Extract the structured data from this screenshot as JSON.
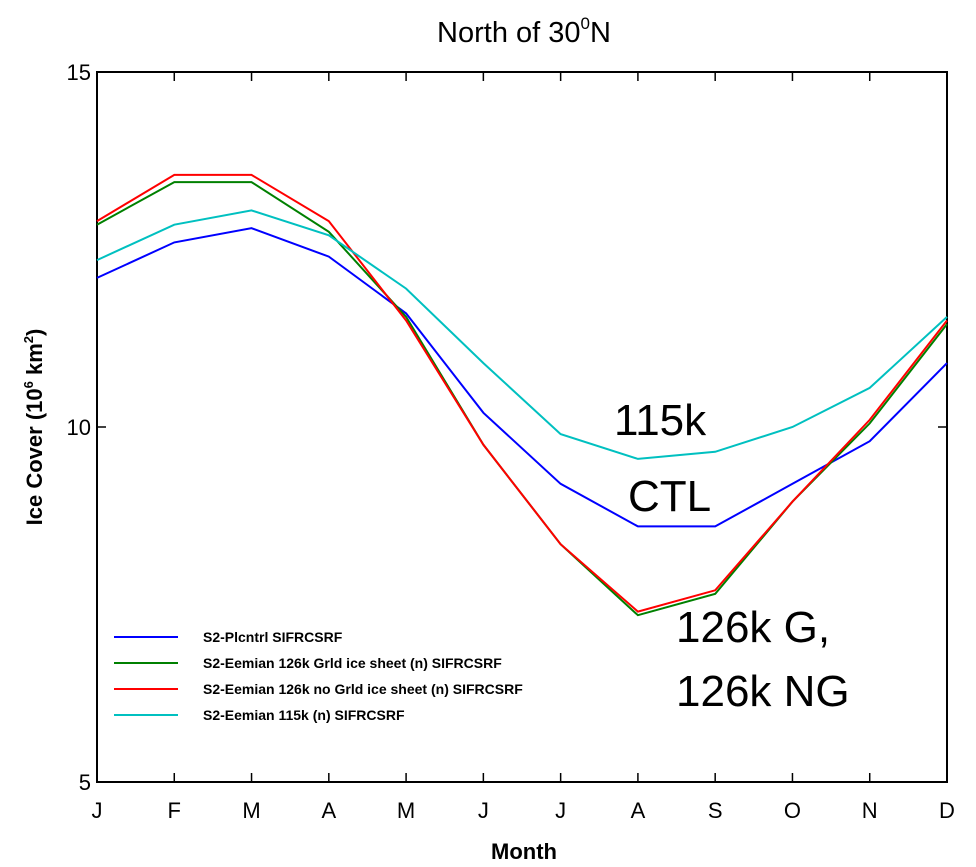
{
  "chart_data": {
    "type": "line",
    "title": {
      "prefix": "North of 30",
      "sup": "0",
      "suffix": "N"
    },
    "xlabel": "Month",
    "ylabel": {
      "prefix": "Ice Cover (10",
      "sup_1": "6",
      "mid": " km",
      "sup_2": "2",
      "suffix": ")"
    },
    "categories": [
      "J",
      "F",
      "M",
      "A",
      "M",
      "J",
      "J",
      "A",
      "S",
      "O",
      "N",
      "D"
    ],
    "y_ticks": [
      "5",
      "10",
      "15"
    ],
    "ylim": [
      5,
      15
    ],
    "grid": false,
    "legend_position": "bottom-left",
    "series": [
      {
        "name": "S2-Plcntrl SIFRCSRF",
        "color": "#0000ff",
        "values": [
          12.1,
          12.6,
          12.8,
          12.4,
          11.6,
          10.2,
          9.2,
          8.6,
          8.6,
          9.2,
          9.8,
          10.9
        ]
      },
      {
        "name": "S2-Eemian 126k Grld ice sheet (n) SIFRCSRF",
        "color": "#008000",
        "values": [
          12.85,
          13.45,
          13.45,
          12.75,
          11.55,
          9.75,
          8.35,
          7.35,
          7.65,
          8.95,
          10.05,
          11.45
        ]
      },
      {
        "name": "S2-Eemian 126k no Grld ice sheet (n) SIFRCSRF",
        "color": "#ff0000",
        "values": [
          12.9,
          13.55,
          13.55,
          12.9,
          11.5,
          9.75,
          8.35,
          7.4,
          7.7,
          8.95,
          10.1,
          11.5
        ]
      },
      {
        "name": "S2-Eemian 115k (n) SIFRCSRF",
        "color": "#00c0c0",
        "values": [
          12.35,
          12.85,
          13.05,
          12.7,
          11.95,
          10.9,
          9.9,
          9.55,
          9.65,
          10.0,
          10.55,
          11.55
        ]
      }
    ],
    "annotations": [
      "115k",
      "CTL",
      "126k G,",
      "126k NG"
    ]
  }
}
